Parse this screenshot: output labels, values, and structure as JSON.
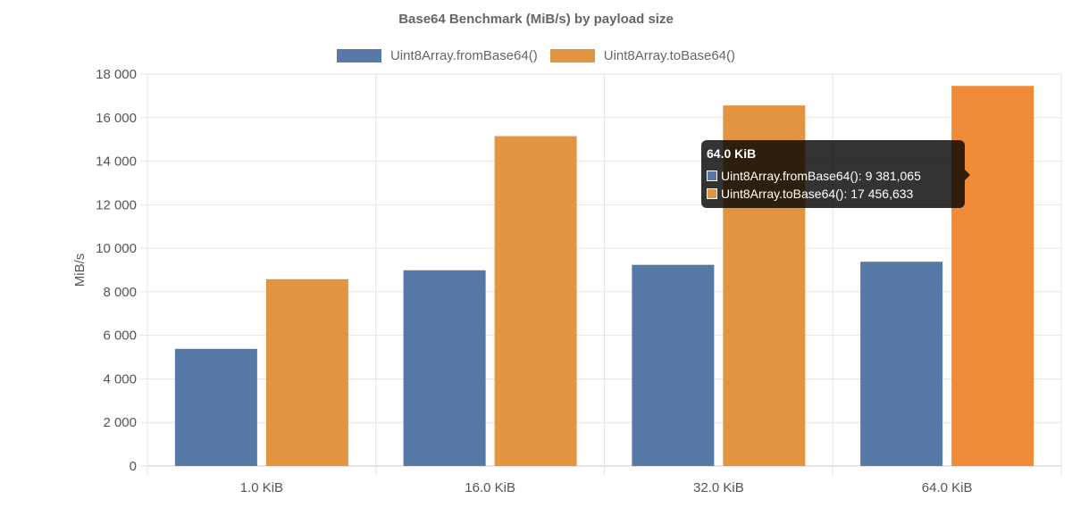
{
  "chart_data": {
    "type": "bar",
    "title": "Base64 Benchmark (MiB/s) by payload size",
    "ylabel": "MiB/s",
    "xlabel": "",
    "categories": [
      "1.0 KiB",
      "16.0 KiB",
      "32.0 KiB",
      "64.0 KiB"
    ],
    "ylim": [
      0,
      18000
    ],
    "yticks": [
      0,
      2000,
      4000,
      6000,
      8000,
      10000,
      12000,
      14000,
      16000,
      18000
    ],
    "ytick_labels": [
      "0",
      "2 000",
      "4 000",
      "6 000",
      "8 000",
      "10 000",
      "12 000",
      "14 000",
      "16 000",
      "18 000"
    ],
    "grid": true,
    "legend_position": "top-center",
    "series": [
      {
        "name": "Uint8Array.fromBase64()",
        "color": "#5878a8",
        "values": [
          5380,
          8990,
          9240,
          9381.065
        ]
      },
      {
        "name": "Uint8Array.toBase64()",
        "color": "#e39443",
        "values": [
          8580,
          15150,
          16560,
          17456.633
        ]
      }
    ]
  },
  "tooltip": {
    "title": "64.0 KiB",
    "rows": [
      {
        "label": "Uint8Array.fromBase64(): 9 381,065",
        "color": "#5878a8"
      },
      {
        "label": "Uint8Array.toBase64(): 17 456,633",
        "color": "#e39443"
      }
    ]
  }
}
